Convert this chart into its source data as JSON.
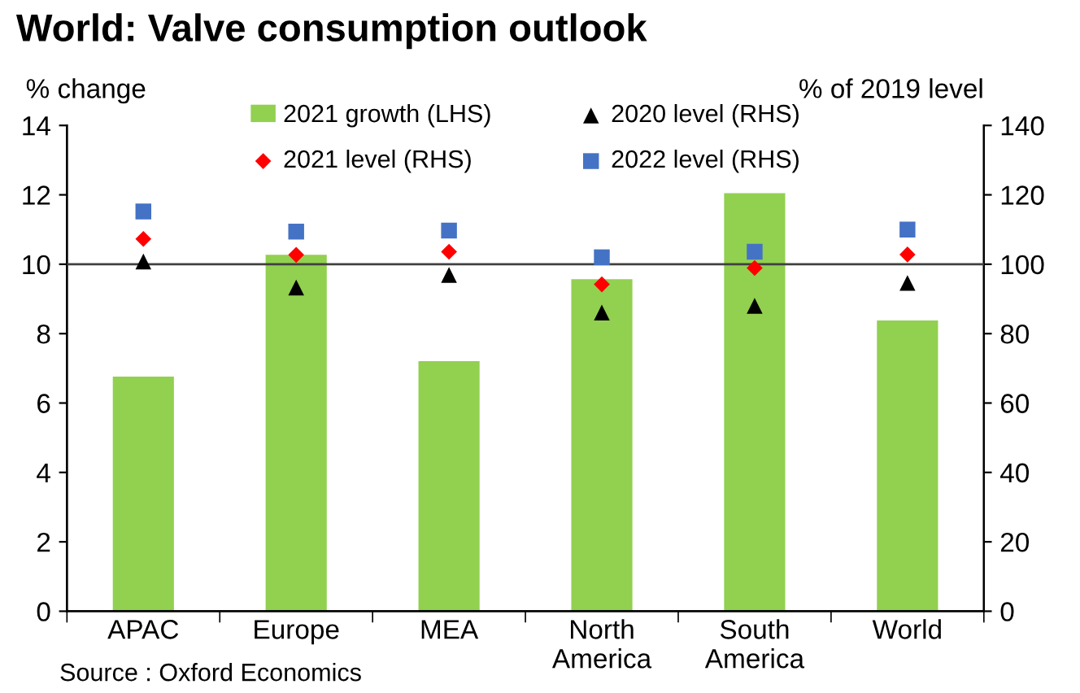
{
  "chart_data": {
    "type": "bar",
    "title": "World: Valve consumption outlook",
    "ylabel": "% change",
    "y2label": "% of 2019 level",
    "categories": [
      "APAC",
      "Europe",
      "MEA",
      "North\nAmerica",
      "South\nAmerica",
      "World"
    ],
    "series": [
      {
        "name": "2021 growth (LHS)",
        "color": "#92d050",
        "values": [
          6.76,
          10.27,
          7.21,
          9.57,
          12.05,
          8.38
        ]
      },
      {
        "name": "2020 level (RHS)",
        "type": "scatter",
        "axis": "y2",
        "marker": "triangle",
        "color": "#000000",
        "values": [
          100.8,
          93.3,
          96.9,
          86.1,
          88.0,
          94.6
        ]
      },
      {
        "name": "2021 level (RHS)",
        "type": "scatter",
        "axis": "y2",
        "marker": "diamond",
        "color": "#ff0000",
        "values": [
          107.3,
          102.7,
          103.6,
          94.2,
          98.9,
          102.8
        ]
      },
      {
        "name": "2022 level (RHS)",
        "type": "scatter",
        "axis": "y2",
        "marker": "square",
        "color": "#4472c4",
        "values": [
          115.2,
          109.4,
          109.7,
          102.0,
          103.6,
          110.0
        ]
      }
    ],
    "ylim": [
      0,
      14
    ],
    "yticks": [
      0,
      2,
      4,
      6,
      8,
      10,
      12,
      14
    ],
    "y2lim": [
      0,
      140
    ],
    "y2ticks": [
      0,
      20,
      40,
      60,
      80,
      100,
      120,
      140
    ],
    "ref_lines": [
      {
        "axis": "y2",
        "value": 100,
        "color": "#404040"
      }
    ],
    "legend": "top",
    "grid": false,
    "annotations": [
      "Source : Oxford Economics"
    ]
  }
}
